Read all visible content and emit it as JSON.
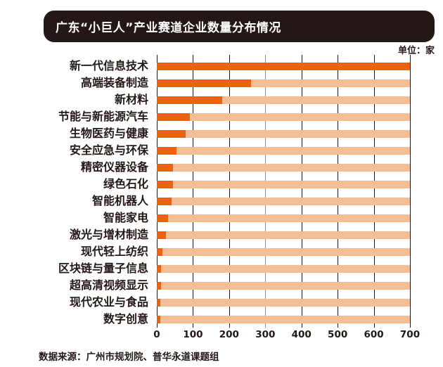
{
  "title": "广东“小巨人”产业赛道企业数量分布情况",
  "unit_label": "单位：家",
  "source": "数据来源：广州市规划院、普华永道课题组",
  "colors": {
    "bar": "#EB6311",
    "track": "#F7BE95",
    "title_bg": "#231815",
    "title_text": "#FFFFFF",
    "text": "#231815",
    "gridline": "#1A1A1A",
    "gridline_300": "#8A8A8A",
    "background": "#FFFFFF"
  },
  "chart_data": {
    "type": "bar",
    "orientation": "horizontal",
    "title": "广东“小巨人”产业赛道企业数量分布情况",
    "unit": "家",
    "categories": [
      "新一代信息技术",
      "高端装备制造",
      "新材料",
      "节能与新能源汽车",
      "生物医药与健康",
      "安全应急与环保",
      "精密仪器设备",
      "绿色石化",
      "智能机器人",
      "智能家电",
      "激光与增材制造",
      "现代轻上纺织",
      "区块链与量子信息",
      "超高清视频显示",
      "现代农业与食品",
      "数字创意"
    ],
    "values": [
      700,
      260,
      180,
      92,
      80,
      54,
      45,
      45,
      40,
      32,
      26,
      15,
      12,
      12,
      10,
      9
    ],
    "xlim": [
      0,
      700
    ],
    "x_ticks": [
      0,
      100,
      200,
      300,
      400,
      500,
      600,
      700
    ],
    "grid": "vertical",
    "legend": "none",
    "track_full_width": true
  }
}
